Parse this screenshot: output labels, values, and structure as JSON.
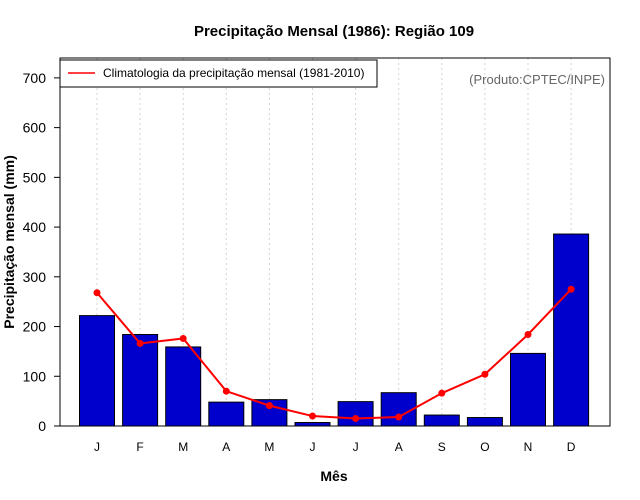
{
  "chart_data": {
    "type": "bar",
    "title": "Precipitação Mensal (1986): Região 109",
    "xlabel": "Mês",
    "ylabel": "Precipitação mensal (mm)",
    "ylim": [
      0,
      740
    ],
    "yticks": [
      0,
      100,
      200,
      300,
      400,
      500,
      600,
      700
    ],
    "categories": [
      "J",
      "F",
      "M",
      "A",
      "M",
      "J",
      "J",
      "A",
      "S",
      "O",
      "N",
      "D"
    ],
    "series": [
      {
        "name": "Precipitação mensal (1986)",
        "kind": "bar",
        "color": "#0000cd",
        "values": [
          222,
          184,
          159,
          48,
          53,
          7,
          49,
          67,
          22,
          17,
          146,
          386
        ]
      },
      {
        "name": "Climatologia da precipitação mensal (1981-2010)",
        "kind": "line",
        "color": "#ff0000",
        "values": [
          268,
          166,
          176,
          70,
          41,
          20,
          15,
          18,
          66,
          104,
          184,
          275
        ]
      }
    ],
    "legend": {
      "entry": "Climatologia da precipitação mensal (1981-2010)",
      "placement": "top-left"
    },
    "credit": "(Produto:CPTEC/INPE)",
    "grid": "vertical dotted"
  }
}
